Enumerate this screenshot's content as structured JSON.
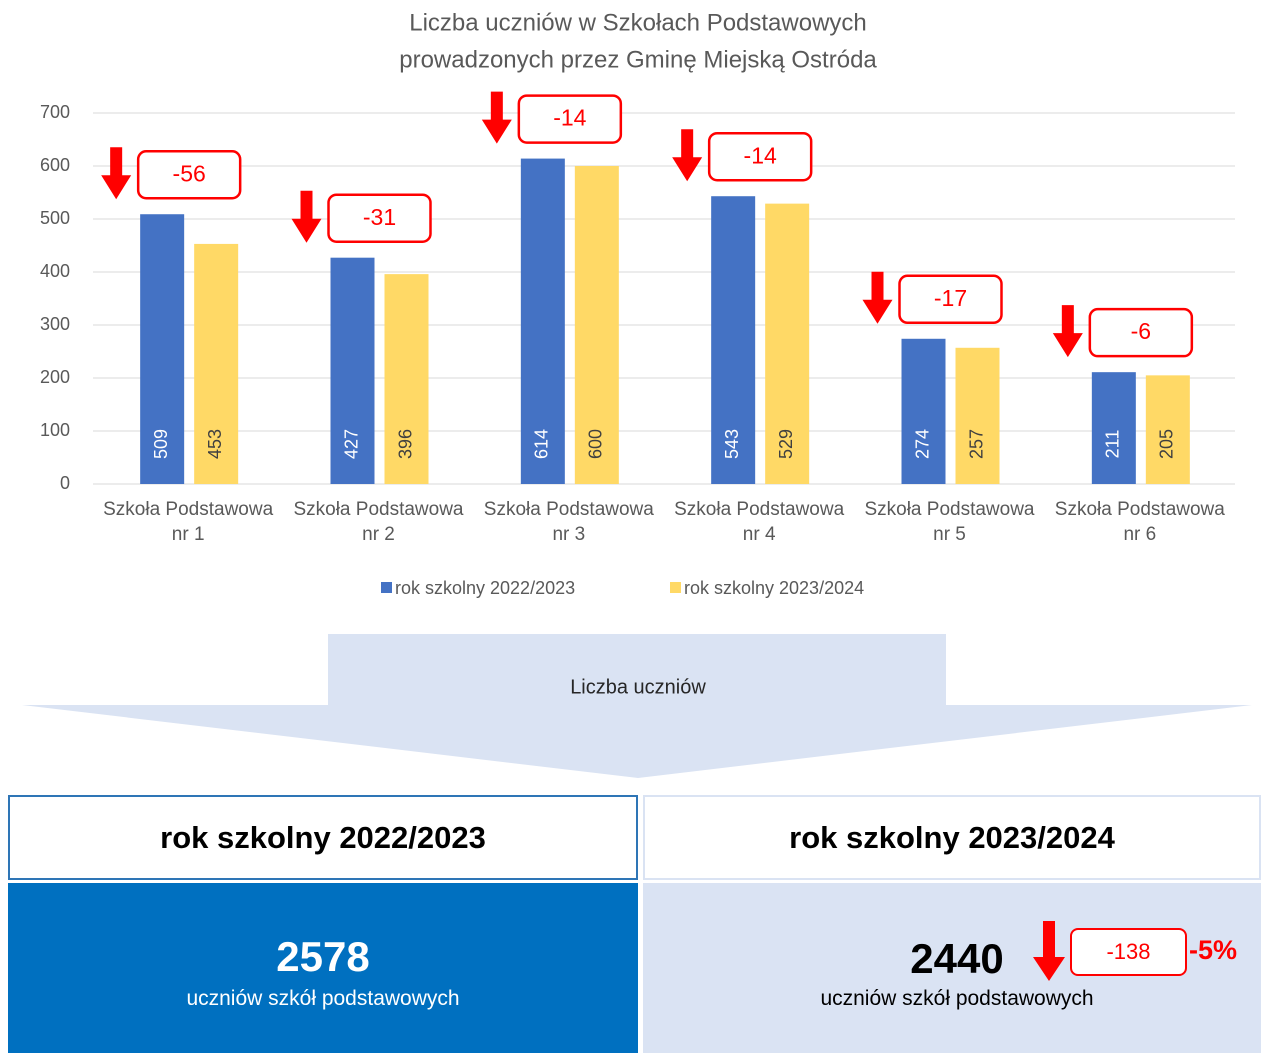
{
  "chart_data": {
    "type": "bar",
    "title": [
      "Liczba uczniów w Szkołach Podstawowych",
      "prowadzonych przez Gminę Miejską Ostróda"
    ],
    "categories": [
      "Szkoła Podstawowa nr 1",
      "Szkoła Podstawowa nr 2",
      "Szkoła Podstawowa nr 3",
      "Szkoła Podstawowa nr 4",
      "Szkoła Podstawowa nr 5",
      "Szkoła Podstawowa nr 6"
    ],
    "series": [
      {
        "name": "rok szkolny 2022/2023",
        "color": "#4472c4",
        "values": [
          509,
          427,
          614,
          543,
          274,
          211
        ]
      },
      {
        "name": "rok szkolny 2023/2024",
        "color": "#ffd966",
        "values": [
          453,
          396,
          600,
          529,
          257,
          205
        ]
      }
    ],
    "differences": [
      -56,
      -31,
      -14,
      -14,
      -17,
      -6
    ],
    "ylim": [
      0,
      700
    ],
    "yticks": [
      0,
      100,
      200,
      300,
      400,
      500,
      600,
      700
    ],
    "grid": true,
    "legend": "bottom"
  },
  "summary": {
    "label": "Liczba uczniów",
    "columns": [
      {
        "header": "rok szkolny 2022/2023",
        "total": 2578,
        "caption": "uczniów szkół podstawowych"
      },
      {
        "header": "rok szkolny 2023/2024",
        "total": 2440,
        "caption": "uczniów szkół podstawowych",
        "change": -138,
        "percent": "-5%"
      }
    ]
  }
}
